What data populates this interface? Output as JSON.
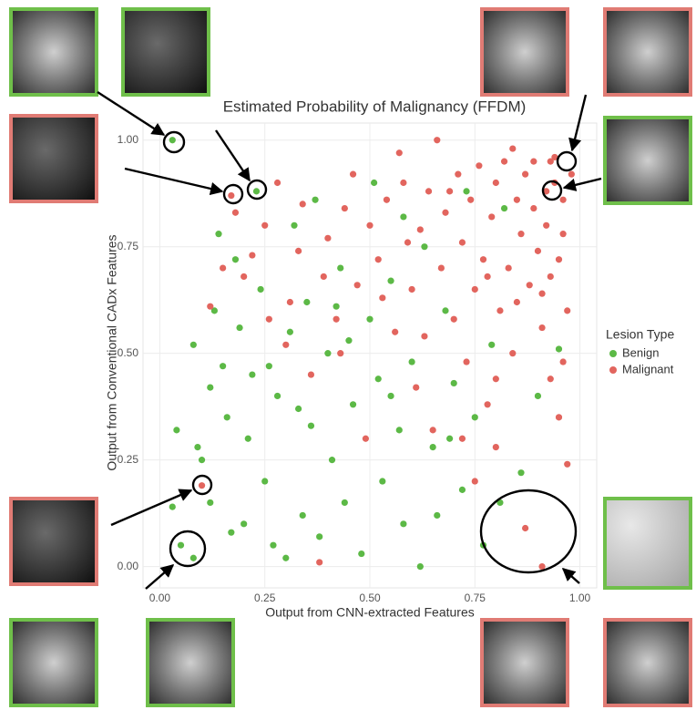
{
  "chart_data": {
    "type": "scatter",
    "title": "Estimated Probability of Malignancy (FFDM)",
    "x_label": "Output from CNN-extracted Features",
    "y_label": "Output from Conventional CADx Features",
    "legend_title": "Lesion Type",
    "xlim": [
      -0.04,
      1.04
    ],
    "ylim": [
      -0.05,
      1.04
    ],
    "xticks": [
      {
        "value": 0,
        "label": "0.00"
      },
      {
        "value": 0.25,
        "label": "0.25"
      },
      {
        "value": 0.5,
        "label": "0.50"
      },
      {
        "value": 0.75,
        "label": "0.75"
      },
      {
        "value": 1,
        "label": "1.00"
      }
    ],
    "yticks": [
      {
        "value": 0,
        "label": "0.00"
      },
      {
        "value": 0.25,
        "label": "0.25"
      },
      {
        "value": 0.5,
        "label": "0.50"
      },
      {
        "value": 0.75,
        "label": "0.75"
      },
      {
        "value": 1,
        "label": "1.00"
      }
    ],
    "grid": true,
    "series": [
      {
        "name": "Benign",
        "color": "#5cb946",
        "x": [
          0.03,
          0.23,
          0.05,
          0.08,
          0.81,
          0.04,
          0.03,
          0.08,
          0.09,
          0.1,
          0.12,
          0.13,
          0.14,
          0.15,
          0.16,
          0.18,
          0.19,
          0.2,
          0.21,
          0.22,
          0.24,
          0.25,
          0.27,
          0.28,
          0.3,
          0.31,
          0.32,
          0.34,
          0.35,
          0.36,
          0.37,
          0.38,
          0.4,
          0.41,
          0.43,
          0.44,
          0.46,
          0.48,
          0.5,
          0.51,
          0.52,
          0.53,
          0.55,
          0.57,
          0.58,
          0.6,
          0.62,
          0.63,
          0.65,
          0.66,
          0.68,
          0.7,
          0.72,
          0.73,
          0.75,
          0.77,
          0.79,
          0.82,
          0.86,
          0.9,
          0.95,
          0.45,
          0.33,
          0.17,
          0.12,
          0.58,
          0.42,
          0.26,
          0.55,
          0.69
        ],
        "values": [
          1.0,
          0.88,
          0.05,
          0.02,
          0.15,
          0.32,
          0.14,
          0.52,
          0.28,
          0.25,
          0.42,
          0.6,
          0.78,
          0.47,
          0.35,
          0.72,
          0.56,
          0.1,
          0.3,
          0.45,
          0.65,
          0.2,
          0.05,
          0.4,
          0.02,
          0.55,
          0.8,
          0.12,
          0.62,
          0.33,
          0.86,
          0.07,
          0.5,
          0.25,
          0.7,
          0.15,
          0.38,
          0.03,
          0.58,
          0.9,
          0.44,
          0.2,
          0.67,
          0.32,
          0.1,
          0.48,
          0.0,
          0.75,
          0.28,
          0.12,
          0.6,
          0.43,
          0.18,
          0.88,
          0.35,
          0.05,
          0.52,
          0.84,
          0.22,
          0.4,
          0.51,
          0.53,
          0.37,
          0.08,
          0.15,
          0.82,
          0.61,
          0.47,
          0.4,
          0.3
        ]
      },
      {
        "name": "Malignant",
        "color": "#e2655e",
        "x": [
          0.17,
          0.1,
          0.93,
          0.92,
          0.94,
          0.87,
          0.91,
          0.12,
          0.18,
          0.2,
          0.25,
          0.28,
          0.3,
          0.33,
          0.36,
          0.38,
          0.4,
          0.42,
          0.44,
          0.47,
          0.49,
          0.52,
          0.54,
          0.56,
          0.58,
          0.6,
          0.61,
          0.62,
          0.64,
          0.65,
          0.66,
          0.67,
          0.68,
          0.7,
          0.71,
          0.72,
          0.73,
          0.74,
          0.75,
          0.76,
          0.77,
          0.78,
          0.79,
          0.8,
          0.81,
          0.82,
          0.83,
          0.84,
          0.85,
          0.86,
          0.87,
          0.88,
          0.89,
          0.9,
          0.91,
          0.92,
          0.93,
          0.94,
          0.95,
          0.96,
          0.97,
          0.96,
          0.97,
          0.95,
          0.93,
          0.89,
          0.85,
          0.8,
          0.78,
          0.72,
          0.69,
          0.63,
          0.59,
          0.57,
          0.53,
          0.5,
          0.46,
          0.43,
          0.39,
          0.34,
          0.31,
          0.26,
          0.22,
          0.15,
          0.98,
          0.96,
          0.91,
          0.84,
          0.8,
          0.75
        ],
        "values": [
          0.87,
          0.19,
          0.95,
          0.88,
          0.96,
          0.09,
          0.0,
          0.61,
          0.83,
          0.68,
          0.8,
          0.9,
          0.52,
          0.74,
          0.45,
          0.01,
          0.77,
          0.58,
          0.84,
          0.66,
          0.3,
          0.72,
          0.86,
          0.55,
          0.9,
          0.65,
          0.42,
          0.79,
          0.88,
          0.32,
          1.0,
          0.7,
          0.83,
          0.58,
          0.92,
          0.76,
          0.48,
          0.86,
          0.65,
          0.94,
          0.72,
          0.38,
          0.82,
          0.9,
          0.6,
          0.95,
          0.7,
          0.5,
          0.86,
          0.78,
          0.92,
          0.66,
          0.84,
          0.74,
          0.56,
          0.8,
          0.68,
          0.9,
          0.35,
          0.78,
          0.24,
          0.86,
          0.6,
          0.72,
          0.44,
          0.95,
          0.62,
          0.28,
          0.68,
          0.3,
          0.88,
          0.54,
          0.76,
          0.97,
          0.63,
          0.8,
          0.92,
          0.5,
          0.68,
          0.85,
          0.62,
          0.58,
          0.73,
          0.7,
          0.92,
          0.48,
          0.64,
          0.98,
          0.44,
          0.2
        ]
      }
    ]
  }
}
